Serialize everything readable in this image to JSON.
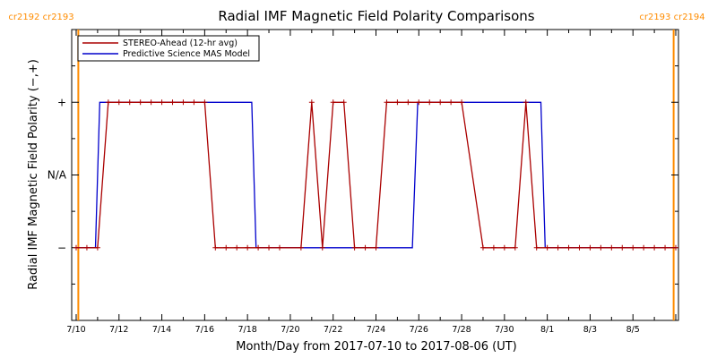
{
  "chart_data": {
    "type": "line",
    "title": "Radial IMF Magnetic Field Polarity Comparisons",
    "xlabel": "Month/Day from 2017-07-10 to 2017-08-06 (UT)",
    "ylabel": "Radial IMF Magnetic Field Polarity (−,+)",
    "x_tick_labels": [
      "7/10",
      "7/12",
      "7/14",
      "7/16",
      "7/18",
      "7/20",
      "7/22",
      "7/24",
      "7/26",
      "7/28",
      "7/30",
      "8/1",
      "8/3",
      "8/5"
    ],
    "y_tick_labels": [
      "−",
      "N/A",
      "+"
    ],
    "y_tick_values": [
      -1,
      0,
      1
    ],
    "xlim_days": [
      0,
      28
    ],
    "ylim": [
      -2,
      2
    ],
    "grid": false,
    "legend_position": "top-left",
    "carrington_markers": [
      {
        "left": "cr2192",
        "right": "cr2193",
        "day": 0.1,
        "color": "#ff8c00"
      },
      {
        "left": "cr2193",
        "right": "cr2194",
        "day": 27.9,
        "color": "#ff8c00"
      }
    ],
    "series": [
      {
        "name": "STEREO-Ahead (12-hr avg)",
        "color": "#aa0000",
        "markers": true,
        "points": [
          [
            0.0,
            -1
          ],
          [
            0.5,
            -1
          ],
          [
            1.0,
            -1
          ],
          [
            1.5,
            1
          ],
          [
            2.0,
            1
          ],
          [
            2.5,
            1
          ],
          [
            3.0,
            1
          ],
          [
            3.5,
            1
          ],
          [
            4.0,
            1
          ],
          [
            4.5,
            1
          ],
          [
            5.0,
            1
          ],
          [
            5.5,
            1
          ],
          [
            6.0,
            1
          ],
          [
            6.5,
            -1
          ],
          [
            7.0,
            -1
          ],
          [
            7.5,
            -1
          ],
          [
            8.0,
            -1
          ],
          [
            8.5,
            -1
          ],
          [
            9.0,
            -1
          ],
          [
            9.5,
            -1
          ],
          [
            10.5,
            -1
          ],
          [
            11.0,
            1
          ],
          [
            11.5,
            -1
          ],
          [
            12.0,
            1
          ],
          [
            12.5,
            1
          ],
          [
            13.0,
            -1
          ],
          [
            13.5,
            -1
          ],
          [
            14.0,
            -1
          ],
          [
            14.5,
            1
          ],
          [
            15.0,
            1
          ],
          [
            15.5,
            1
          ],
          [
            16.0,
            1
          ],
          [
            16.5,
            1
          ],
          [
            17.0,
            1
          ],
          [
            17.5,
            1
          ],
          [
            18.0,
            1
          ],
          [
            19.0,
            -1
          ],
          [
            19.5,
            -1
          ],
          [
            20.0,
            -1
          ],
          [
            20.5,
            -1
          ],
          [
            21.0,
            1
          ],
          [
            21.5,
            -1
          ],
          [
            22.0,
            -1
          ],
          [
            22.5,
            -1
          ],
          [
            23.0,
            -1
          ],
          [
            23.5,
            -1
          ],
          [
            24.0,
            -1
          ],
          [
            24.5,
            -1
          ],
          [
            25.0,
            -1
          ],
          [
            25.5,
            -1
          ],
          [
            26.0,
            -1
          ],
          [
            26.5,
            -1
          ],
          [
            27.0,
            -1
          ],
          [
            27.5,
            -1
          ],
          [
            28.0,
            -1
          ]
        ]
      },
      {
        "name": "Predictive Science MAS Model",
        "color": "#0000cc",
        "markers": false,
        "points": [
          [
            0.0,
            -1
          ],
          [
            0.9,
            -1
          ],
          [
            1.1,
            1
          ],
          [
            8.2,
            1
          ],
          [
            8.4,
            -1
          ],
          [
            15.7,
            -1
          ],
          [
            15.95,
            1
          ],
          [
            21.7,
            1
          ],
          [
            21.9,
            -1
          ],
          [
            28.0,
            -1
          ]
        ]
      }
    ]
  }
}
